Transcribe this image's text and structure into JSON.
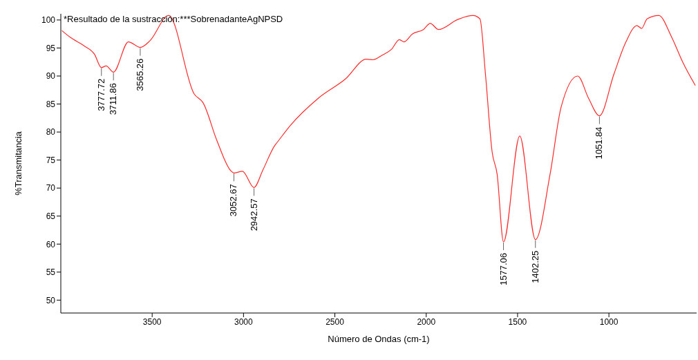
{
  "chart_data": {
    "type": "line",
    "title": "*Resultado de la sustracción:***SobrenadanteAgNPSD",
    "xlabel": "Número de Ondas (cm-1)",
    "ylabel": "%Transmitancia",
    "x": [
      3994,
      3948,
      3873,
      3816,
      3778,
      3752,
      3712,
      3630,
      3565,
      3512,
      3410,
      3270,
      3221,
      3146,
      3070,
      3053,
      3006,
      2943,
      2893,
      2829,
      2817,
      2743,
      2592,
      2441,
      2328,
      2291,
      2242,
      2189,
      2147,
      2121,
      2076,
      2015,
      1978,
      1933,
      1827,
      1744,
      1706,
      1676,
      1639,
      1612,
      1577,
      1488,
      1402,
      1322,
      1262,
      1171,
      1111,
      1052,
      972,
      908,
      847,
      821,
      791,
      727,
      659,
      595,
      527
    ],
    "series": [
      {
        "color": "#ff2a2a",
        "values": [
          98.1,
          96.9,
          95.4,
          93.9,
          91.5,
          91.8,
          90.7,
          96.1,
          95.1,
          96.3,
          100.8,
          86.8,
          85.2,
          78.5,
          73.1,
          72.7,
          73.0,
          70.1,
          73.3,
          77.6,
          78.1,
          81.2,
          86.0,
          89.5,
          93.0,
          92.9,
          93.7,
          94.8,
          96.5,
          96.1,
          97.5,
          98.3,
          99.4,
          98.3,
          100.1,
          100.8,
          100.2,
          90.4,
          76.4,
          72.5,
          60.4,
          79.3,
          60.8,
          72.5,
          84.4,
          90.0,
          86.0,
          82.9,
          90.4,
          96.0,
          99.0,
          98.5,
          100.2,
          100.8,
          97.1,
          92.4,
          88.3
        ]
      }
    ],
    "xlim": [
      4000,
      520
    ],
    "ylim": [
      47.7,
      101.1
    ],
    "xticks": [
      3500,
      3000,
      2500,
      2000,
      1500,
      1000
    ],
    "yticks": [
      50,
      55,
      60,
      65,
      70,
      75,
      80,
      85,
      90,
      95,
      100
    ],
    "grid": false,
    "legend": false,
    "annotations": [
      {
        "text": "3777.72",
        "x": 3777.72,
        "y": 91.5
      },
      {
        "text": "3711.86",
        "x": 3711.86,
        "y": 90.7
      },
      {
        "text": "3565.26",
        "x": 3565.26,
        "y": 95.1
      },
      {
        "text": "3052.67",
        "x": 3052.67,
        "y": 72.7
      },
      {
        "text": "2942.57",
        "x": 2942.57,
        "y": 70.1
      },
      {
        "text": "1577.06",
        "x": 1577.06,
        "y": 60.4
      },
      {
        "text": "1402.25",
        "x": 1402.25,
        "y": 60.8
      },
      {
        "text": "1051.84",
        "x": 1051.84,
        "y": 82.9
      }
    ]
  }
}
